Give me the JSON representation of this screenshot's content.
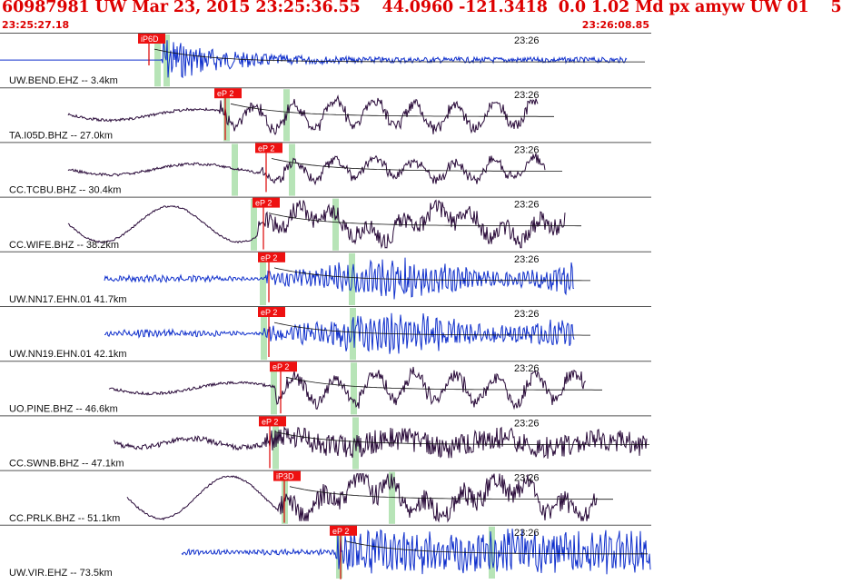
{
  "header": {
    "event_title": "60987981 UW Mar 23, 2015 23:25:36.55    44.0960 -121.3418  0.0 1.02 Md px amyw UW 01    5",
    "time_start": "23:25:27.18",
    "time_end": "23:26:08.85"
  },
  "colors": {
    "header_text": "#dd0000",
    "pick_box": "#ee1111",
    "pick_line": "#dd0000",
    "window_band": "#b7e4b7",
    "trace_blue": "#1030cc",
    "trace_dark": "#2a0b3a",
    "coda_curve": "#111111",
    "separator": "#555555"
  },
  "panels": [
    {
      "label": "UW.BEND.EHZ -- 3.4km",
      "pick": "iP6D",
      "time_label": "23:26",
      "trace_color": "blue"
    },
    {
      "label": "TA.I05D.BHZ -- 27.0km",
      "pick": "eP 2",
      "time_label": "23:26",
      "trace_color": "dark"
    },
    {
      "label": "CC.TCBU.BHZ -- 30.4km",
      "pick": "eP 2",
      "time_label": "23:26",
      "trace_color": "dark"
    },
    {
      "label": "CC.WIFE.BHZ -- 38.2km",
      "pick": "eP 2",
      "time_label": "23:26",
      "trace_color": "dark"
    },
    {
      "label": "UW.NN17.EHN.01 41.7km",
      "pick": "eP 2",
      "time_label": "23:26",
      "trace_color": "blue"
    },
    {
      "label": "UW.NN19.EHN.01 42.1km",
      "pick": "eP 2",
      "time_label": "23:26",
      "trace_color": "blue"
    },
    {
      "label": "UO.PINE.BHZ -- 46.6km",
      "pick": "eP 2",
      "time_label": "23:26",
      "trace_color": "dark"
    },
    {
      "label": "CC.SWNB.BHZ -- 47.1km",
      "pick": "eP 2",
      "time_label": "23:26",
      "trace_color": "dark"
    },
    {
      "label": "CC.PRLK.BHZ -- 51.1km",
      "pick": "iP3D",
      "time_label": "23:26",
      "trace_color": "dark"
    },
    {
      "label": "UW.VIR.EHZ -- 73.5km",
      "pick": "eP 2",
      "time_label": "23:26",
      "trace_color": "blue"
    }
  ]
}
